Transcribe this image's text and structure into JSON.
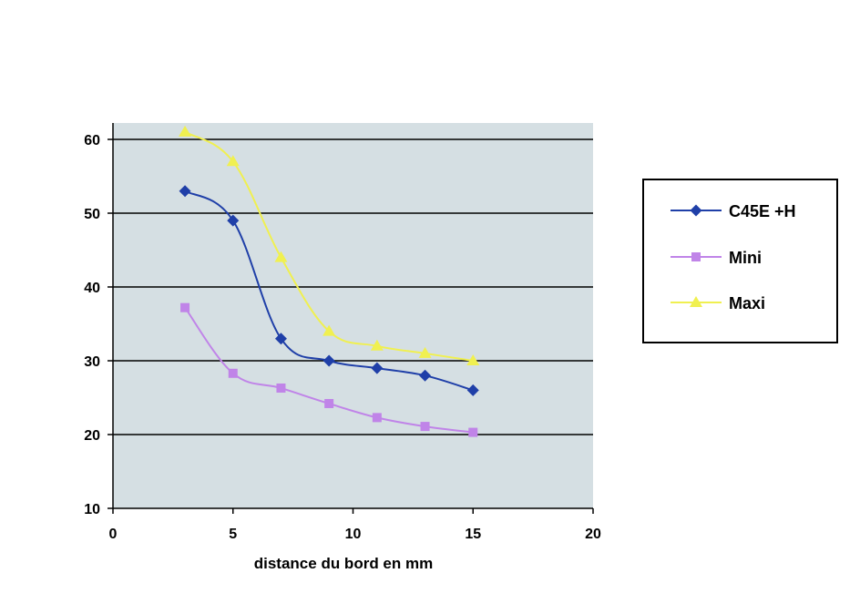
{
  "chart_data": {
    "type": "line",
    "xlabel": "distance du bord en mm",
    "ylabel": "",
    "xlim": [
      0,
      20
    ],
    "ylim": [
      10,
      62
    ],
    "xticks": [
      0,
      5,
      10,
      15,
      20
    ],
    "yticks": [
      10,
      20,
      30,
      40,
      50,
      60
    ],
    "grid": "horizontal",
    "legend_position": "right",
    "plot_background": "#D5DFE3",
    "series": [
      {
        "name": "C45E +H",
        "color": "#1F3FA8",
        "marker": "diamond",
        "x": [
          3,
          5,
          7,
          9,
          11,
          13,
          15
        ],
        "y": [
          53,
          49,
          33,
          30,
          29,
          28,
          26
        ]
      },
      {
        "name": "Mini",
        "color": "#C084E8",
        "marker": "square",
        "x": [
          3,
          5,
          7,
          9,
          11,
          13,
          15
        ],
        "y": [
          37.2,
          28.3,
          26.3,
          24.2,
          22.3,
          21.1,
          20.3
        ]
      },
      {
        "name": "Maxi",
        "color": "#F0F050",
        "marker": "triangle",
        "x": [
          3,
          5,
          7,
          9,
          11,
          13,
          15
        ],
        "y": [
          61,
          57,
          44,
          34,
          32,
          31,
          30
        ]
      }
    ]
  }
}
